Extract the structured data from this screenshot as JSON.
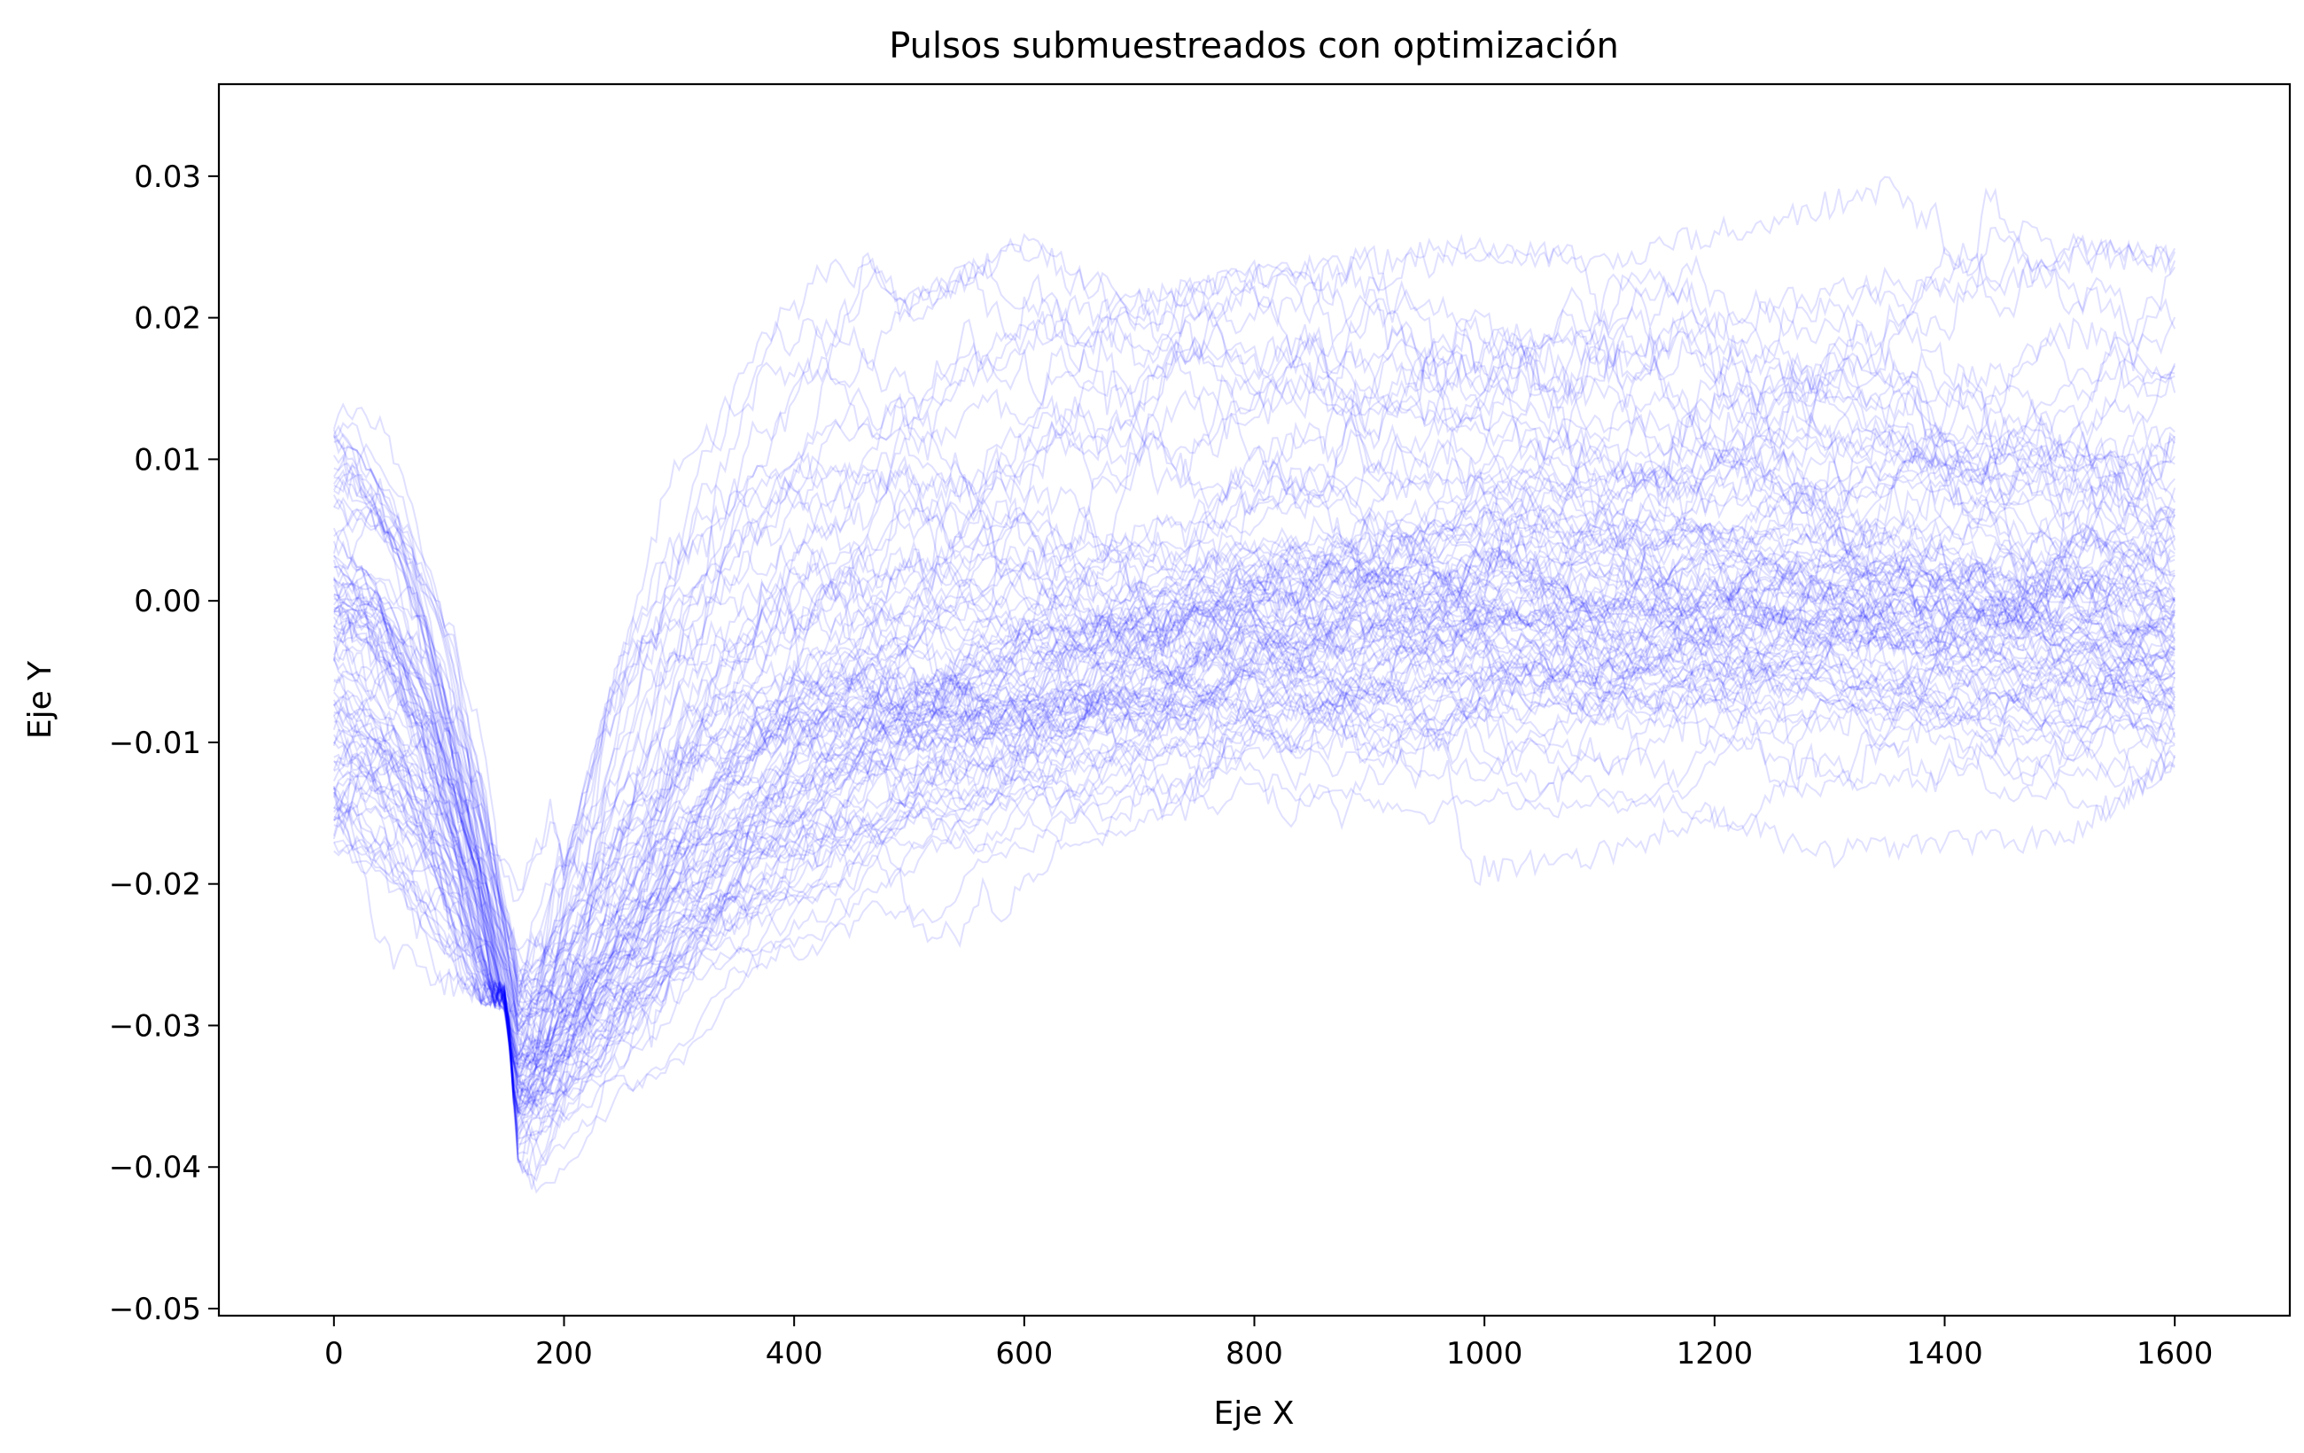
{
  "chart_data": {
    "type": "line",
    "title": "Pulsos submuestreados con optimización",
    "xlabel": "Eje X",
    "ylabel": "Eje Y",
    "xlim": [
      -100,
      1700
    ],
    "ylim": [
      -0.0505,
      0.0365
    ],
    "xticks": [
      0,
      200,
      400,
      600,
      800,
      1000,
      1200,
      1400,
      1600
    ],
    "yticks": [
      0.03,
      0.02,
      0.01,
      0.0,
      -0.01,
      -0.02,
      -0.03,
      -0.04,
      -0.05
    ],
    "xtick_labels": [
      "0",
      "200",
      "400",
      "600",
      "800",
      "1000",
      "1200",
      "1400",
      "1600"
    ],
    "ytick_labels": [
      "0.03",
      "0.02",
      "0.01",
      "0.00",
      "−0.01",
      "−0.02",
      "−0.03",
      "−0.04",
      "−0.05"
    ],
    "grid": false,
    "legend": "none",
    "series_color": "#0000ff",
    "series_opacity": 0.12,
    "n_series": 100,
    "x_range": [
      0,
      1600
    ],
    "trough_x": 160,
    "mean_trace": {
      "x": [
        0,
        50,
        100,
        150,
        160,
        180,
        200,
        250,
        300,
        350,
        400,
        450,
        500,
        600,
        700,
        800,
        900,
        1000,
        1100,
        1200,
        1300,
        1400,
        1500,
        1600
      ],
      "y": [
        -0.012,
        -0.015,
        -0.018,
        -0.024,
        -0.03,
        -0.027,
        -0.023,
        -0.017,
        -0.012,
        -0.009,
        -0.007,
        -0.006,
        -0.005,
        -0.004,
        -0.003,
        -0.002,
        -0.002,
        -0.0015,
        -0.002,
        -0.0015,
        -0.001,
        -0.0015,
        -0.002,
        -0.002
      ]
    },
    "envelope_upper": {
      "x": [
        0,
        100,
        150,
        200,
        300,
        400,
        450,
        500,
        600,
        700,
        800,
        900,
        1000,
        1100,
        1200,
        1300,
        1350,
        1400,
        1450,
        1500,
        1600
      ],
      "y": [
        0.014,
        0.013,
        0.003,
        -0.018,
        0.012,
        0.024,
        0.026,
        0.022,
        0.026,
        0.022,
        0.024,
        0.025,
        0.026,
        0.025,
        0.027,
        0.029,
        0.03,
        0.031,
        0.032,
        0.026,
        0.025
      ]
    },
    "envelope_lower": {
      "x": [
        0,
        100,
        150,
        160,
        200,
        300,
        400,
        500,
        600,
        700,
        800,
        900,
        1000,
        1100,
        1200,
        1300,
        1400,
        1500,
        1600
      ],
      "y": [
        -0.026,
        -0.028,
        -0.029,
        -0.04,
        -0.046,
        -0.042,
        -0.038,
        -0.03,
        -0.024,
        -0.025,
        -0.022,
        -0.024,
        -0.02,
        -0.019,
        -0.016,
        -0.019,
        -0.018,
        -0.018,
        -0.012
      ]
    }
  }
}
